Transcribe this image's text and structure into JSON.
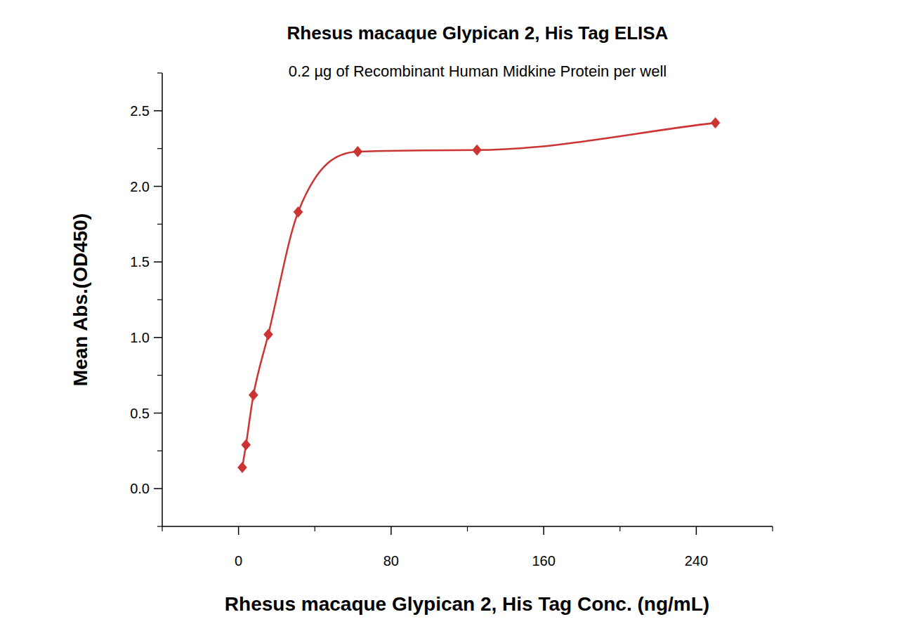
{
  "chart_data": {
    "type": "scatter",
    "title": "Rhesus macaque Glypican 2, His Tag ELISA",
    "subtitle": "0.2 µg of Recombinant Human Midkine Protein per well",
    "x_label": "Rhesus macaque Glypican 2, His Tag Conc. (ng/mL)",
    "y_label": "Mean Abs.(OD450)",
    "x": [
      1.95,
      3.9,
      7.8,
      15.6,
      31.25,
      62.5,
      125,
      250
    ],
    "values": [
      0.14,
      0.29,
      0.62,
      1.02,
      1.83,
      2.23,
      2.24,
      2.42
    ],
    "color": "#cc3333",
    "marker": "diamond",
    "line_style": "solid",
    "xlim": [
      -40,
      280
    ],
    "xticks": [
      0,
      80,
      160,
      240
    ],
    "ylim": [
      -0.25,
      2.75
    ],
    "yticks": [
      {
        "value": 0,
        "label": "0.0"
      },
      {
        "value": 0.5,
        "label": "0.5"
      },
      {
        "value": 1,
        "label": "1.0"
      },
      {
        "value": 1.5,
        "label": "1.5"
      },
      {
        "value": 2,
        "label": "2.0"
      },
      {
        "value": 2.5,
        "label": "2.5"
      }
    ],
    "grid": false
  }
}
